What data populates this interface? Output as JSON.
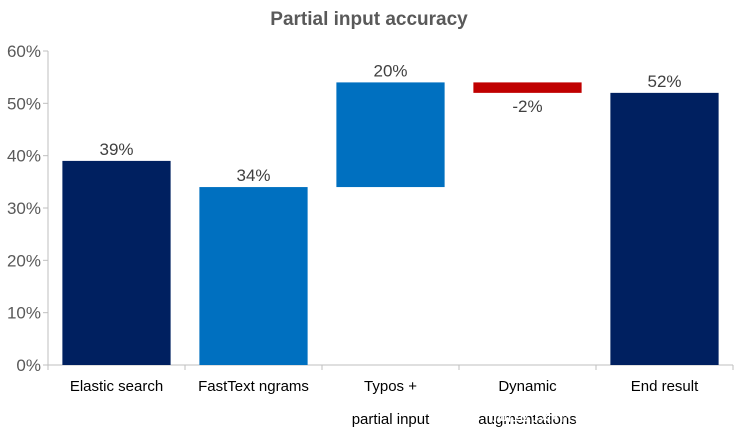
{
  "chart_data": {
    "type": "bar",
    "subtype": "waterfall",
    "title": "Partial input accuracy",
    "xlabel": "",
    "ylabel": "",
    "ylim": [
      0,
      60
    ],
    "ytick_step": 10,
    "ytick_suffix": "%",
    "grid": false,
    "legend": "none",
    "categories": [
      "Elastic search",
      "FastText ngrams",
      "Typos +\npartial input",
      "Dynamic\naugmentations",
      "End result"
    ],
    "bars": [
      {
        "base": 0,
        "value": 39,
        "label": "39%",
        "color": "#002060"
      },
      {
        "base": 0,
        "value": 34,
        "label": "34%",
        "color": "#0070C0"
      },
      {
        "base": 34,
        "value": 20,
        "label": "20%",
        "color": "#0070C0"
      },
      {
        "base": 54,
        "value": -2,
        "label": "-2%",
        "color": "#C00000"
      },
      {
        "base": 0,
        "value": 52,
        "label": "52%",
        "color": "#002060"
      }
    ]
  },
  "watermark": "掘金技术社区 @ 布客飞龙"
}
